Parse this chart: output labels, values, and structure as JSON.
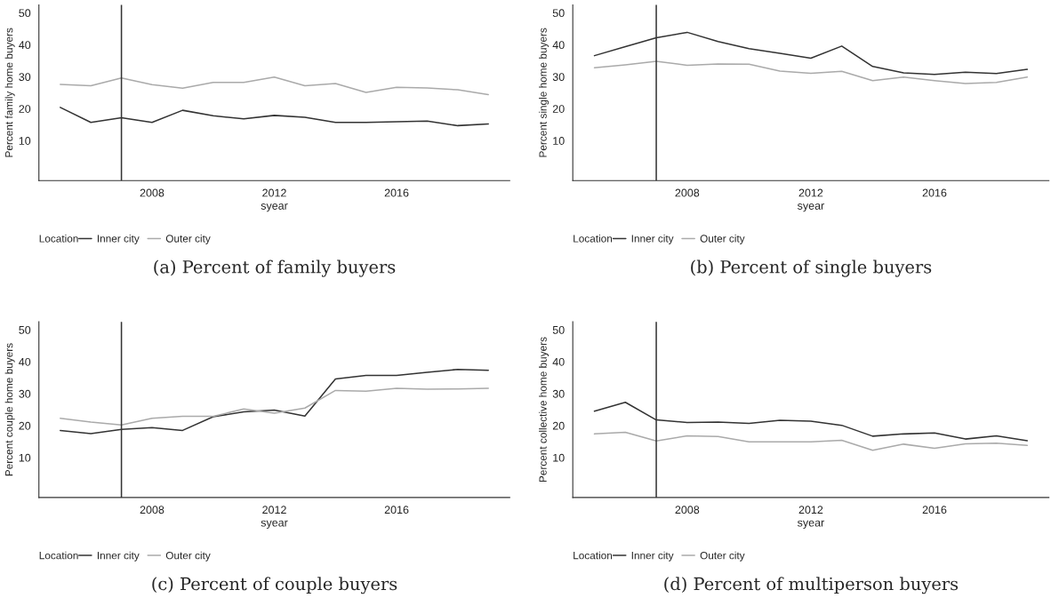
{
  "chart_data": [
    {
      "type": "line",
      "title": "(a) Percent of family buyers",
      "xlabel": "syear",
      "ylabel": "Percent family home buyers",
      "legend_title": "Location",
      "legend": "bottom",
      "grid": false,
      "x": [
        2005,
        2006,
        2007,
        2008,
        2009,
        2010,
        2011,
        2012,
        2013,
        2014,
        2015,
        2016,
        2017,
        2018,
        2019
      ],
      "xlim": [
        2004.3,
        2019.7
      ],
      "xticks": [
        2008,
        2012,
        2016
      ],
      "ylim": [
        -2.5,
        52.5
      ],
      "yticks": [
        10,
        20,
        30,
        40,
        50
      ],
      "ref_lines": [
        {
          "axis": "x",
          "value": 2007,
          "color": "#333333"
        }
      ],
      "series": [
        {
          "name": "Inner city",
          "color": "#333333",
          "values": [
            20.4,
            15.7,
            17.2,
            15.7,
            19.5,
            17.8,
            16.8,
            17.9,
            17.3,
            15.7,
            15.7,
            15.9,
            16.1,
            14.7,
            15.2
          ]
        },
        {
          "name": "Outer city",
          "color": "#aaaaaa",
          "values": [
            27.6,
            27.2,
            29.6,
            27.5,
            26.4,
            28.2,
            28.2,
            29.9,
            27.2,
            27.9,
            25.1,
            26.7,
            26.5,
            25.9,
            24.4
          ]
        }
      ]
    },
    {
      "type": "line",
      "title": "(b) Percent of single buyers",
      "xlabel": "syear",
      "ylabel": "Percent single home buyers",
      "legend_title": "Location",
      "legend": "bottom",
      "grid": false,
      "x": [
        2005,
        2006,
        2007,
        2008,
        2009,
        2010,
        2011,
        2012,
        2013,
        2014,
        2015,
        2016,
        2017,
        2018,
        2019
      ],
      "xlim": [
        2004.3,
        2019.7
      ],
      "xticks": [
        2008,
        2012,
        2016
      ],
      "ylim": [
        -2.5,
        52.5
      ],
      "yticks": [
        10,
        20,
        30,
        40,
        50
      ],
      "ref_lines": [
        {
          "axis": "x",
          "value": 2007,
          "color": "#333333"
        }
      ],
      "series": [
        {
          "name": "Inner city",
          "color": "#333333",
          "values": [
            36.6,
            39.4,
            42.2,
            43.9,
            41.0,
            38.8,
            37.3,
            35.8,
            39.6,
            33.2,
            31.2,
            30.7,
            31.4,
            31.0,
            32.3
          ]
        },
        {
          "name": "Outer city",
          "color": "#aaaaaa",
          "values": [
            32.8,
            33.7,
            34.8,
            33.6,
            34.0,
            33.9,
            31.8,
            31.1,
            31.7,
            28.8,
            29.9,
            28.8,
            27.9,
            28.2,
            29.9
          ]
        }
      ]
    },
    {
      "type": "line",
      "title": "(c) Percent of couple buyers",
      "xlabel": "syear",
      "ylabel": "Percent couple home buyers",
      "legend_title": "Location",
      "legend": "bottom",
      "grid": false,
      "x": [
        2005,
        2006,
        2007,
        2008,
        2009,
        2010,
        2011,
        2012,
        2013,
        2014,
        2015,
        2016,
        2017,
        2018,
        2019
      ],
      "xlim": [
        2004.3,
        2019.7
      ],
      "xticks": [
        2008,
        2012,
        2016
      ],
      "ylim": [
        -2.5,
        52.5
      ],
      "yticks": [
        10,
        20,
        30,
        40,
        50
      ],
      "ref_lines": [
        {
          "axis": "x",
          "value": 2007,
          "color": "#333333"
        }
      ],
      "series": [
        {
          "name": "Inner city",
          "color": "#333333",
          "values": [
            18.5,
            17.5,
            18.8,
            19.4,
            18.5,
            22.8,
            24.3,
            24.9,
            23.0,
            34.6,
            35.7,
            35.7,
            36.7,
            37.6,
            37.3
          ]
        },
        {
          "name": "Outer city",
          "color": "#aaaaaa",
          "values": [
            22.3,
            21.1,
            20.2,
            22.3,
            22.9,
            22.9,
            25.2,
            23.9,
            25.5,
            31.0,
            30.8,
            31.7,
            31.4,
            31.5,
            31.7
          ]
        }
      ]
    },
    {
      "type": "line",
      "title": "(d) Percent of multiperson buyers",
      "xlabel": "syear",
      "ylabel": "Percent collective home buyers",
      "legend_title": "Location",
      "legend": "bottom",
      "grid": false,
      "x": [
        2005,
        2006,
        2007,
        2008,
        2009,
        2010,
        2011,
        2012,
        2013,
        2014,
        2015,
        2016,
        2017,
        2018,
        2019
      ],
      "xlim": [
        2004.3,
        2019.7
      ],
      "xticks": [
        2008,
        2012,
        2016
      ],
      "ylim": [
        -2.5,
        52.5
      ],
      "yticks": [
        10,
        20,
        30,
        40,
        50
      ],
      "ref_lines": [
        {
          "axis": "x",
          "value": 2007,
          "color": "#333333"
        }
      ],
      "series": [
        {
          "name": "Inner city",
          "color": "#333333",
          "values": [
            24.5,
            27.3,
            21.8,
            21.0,
            21.1,
            20.7,
            21.7,
            21.4,
            20.1,
            16.7,
            17.4,
            17.7,
            15.8,
            16.8,
            15.3
          ]
        },
        {
          "name": "Outer city",
          "color": "#aaaaaa",
          "values": [
            17.4,
            17.9,
            15.2,
            16.8,
            16.6,
            14.9,
            14.9,
            14.9,
            15.4,
            12.3,
            14.2,
            12.9,
            14.3,
            14.5,
            13.8
          ]
        }
      ]
    }
  ]
}
